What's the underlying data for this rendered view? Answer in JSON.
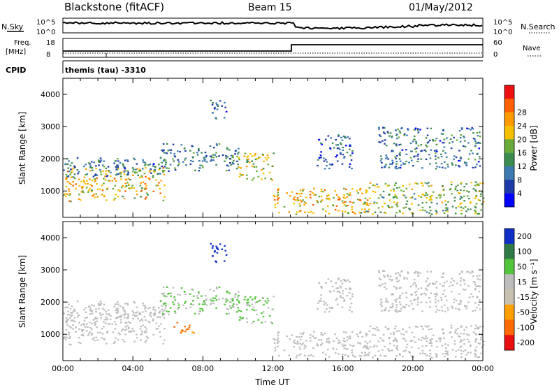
{
  "header": {
    "station": "Blackstone (fitACF)",
    "beam": "Beam 15",
    "date": "01/May/2012"
  },
  "top_panels": {
    "nsky_label": "N.Sky",
    "nsearch_label": "N.Search",
    "nsky_ticks": [
      "10^5",
      "10^0"
    ],
    "nsearch_ticks": [
      "10^5",
      "10^0"
    ],
    "freq_label_1": "Freq.",
    "freq_label_2": "[MHz]",
    "freq_ticks": [
      "18",
      "8"
    ],
    "nave_label": "Nave",
    "nave_ticks": [
      "60",
      "0"
    ],
    "cpid_label": "CPID",
    "cpid_text": "themis (tau) -3310"
  },
  "colors": {
    "power": [
      "#0000ff",
      "#1e3aa6",
      "#3a7ab0",
      "#3c8c50",
      "#6aaa3a",
      "#f6c000",
      "#ff9a00",
      "#ff6000",
      "#ee1010"
    ],
    "velocity": [
      "#0f2fc8",
      "#2f7a46",
      "#52c43a",
      "#bdbdbd",
      "#c8c0b0",
      "#ffa000",
      "#ff6a00",
      "#e81010"
    ]
  },
  "chart_data": [
    {
      "type": "heatmap",
      "quantity": "power",
      "ylabel": "Slant Range [km]",
      "ylim": [
        180,
        4500
      ],
      "yticks": [
        "1000",
        "2000",
        "3000",
        "4000"
      ],
      "xlim": [
        0,
        24
      ],
      "colorbar_label": "Power [dB]",
      "colorbar_ticks": [
        "4",
        "8",
        "12",
        "16",
        "20",
        "24",
        "28"
      ],
      "bands": [
        {
          "t0": 0.0,
          "t1": 5.8,
          "r0": 700,
          "r1": 1750,
          "v": 22
        },
        {
          "t0": 0.0,
          "t1": 6.0,
          "r0": 1450,
          "r1": 2050,
          "v": 10
        },
        {
          "t0": 5.5,
          "t1": 10.0,
          "r0": 1650,
          "r1": 2500,
          "v": 12
        },
        {
          "t0": 8.4,
          "t1": 9.3,
          "r0": 3250,
          "r1": 3900,
          "v": 9
        },
        {
          "t0": 10.0,
          "t1": 12.0,
          "r0": 1350,
          "r1": 2200,
          "v": 20
        },
        {
          "t0": 12.0,
          "t1": 17.5,
          "r0": 300,
          "r1": 1100,
          "v": 24
        },
        {
          "t0": 14.5,
          "t1": 16.5,
          "r0": 1700,
          "r1": 2800,
          "v": 8
        },
        {
          "t0": 17.0,
          "t1": 24.0,
          "r0": 300,
          "r1": 1300,
          "v": 18
        },
        {
          "t0": 18.0,
          "t1": 23.8,
          "r0": 1700,
          "r1": 3000,
          "v": 10
        }
      ]
    },
    {
      "type": "heatmap",
      "quantity": "velocity",
      "ylabel": "Slant Range [km]",
      "ylim": [
        180,
        4500
      ],
      "yticks": [
        "1000",
        "2000",
        "3000",
        "4000"
      ],
      "xlim": [
        0,
        24
      ],
      "xlabel": "Time UT",
      "xticks": [
        "00:00",
        "04:00",
        "08:00",
        "12:00",
        "16:00",
        "20:00",
        "00:00"
      ],
      "colorbar_label": "Velocity [m s⁻¹]",
      "colorbar_ticks": [
        "200",
        "100",
        "50",
        "15",
        "-15",
        "-50",
        "-100",
        "-200"
      ],
      "bands": [
        {
          "t0": 0.0,
          "t1": 5.8,
          "r0": 700,
          "r1": 1750,
          "v": 0
        },
        {
          "t0": 0.0,
          "t1": 6.0,
          "r0": 1450,
          "r1": 2050,
          "v": 0
        },
        {
          "t0": 5.5,
          "t1": 10.0,
          "r0": 1650,
          "r1": 2500,
          "v": 30
        },
        {
          "t0": 8.4,
          "t1": 9.3,
          "r0": 3250,
          "r1": 3900,
          "v": 250
        },
        {
          "t0": 10.0,
          "t1": 12.0,
          "r0": 1350,
          "r1": 2200,
          "v": 30
        },
        {
          "t0": 12.0,
          "t1": 17.5,
          "r0": 300,
          "r1": 1100,
          "v": 0
        },
        {
          "t0": 14.5,
          "t1": 16.5,
          "r0": 1700,
          "r1": 2800,
          "v": 0
        },
        {
          "t0": 17.0,
          "t1": 24.0,
          "r0": 300,
          "r1": 1300,
          "v": 0
        },
        {
          "t0": 18.0,
          "t1": 23.8,
          "r0": 1700,
          "r1": 3000,
          "v": 0
        },
        {
          "t0": 6.3,
          "t1": 7.5,
          "r0": 1050,
          "r1": 1400,
          "v": -60
        }
      ]
    }
  ]
}
